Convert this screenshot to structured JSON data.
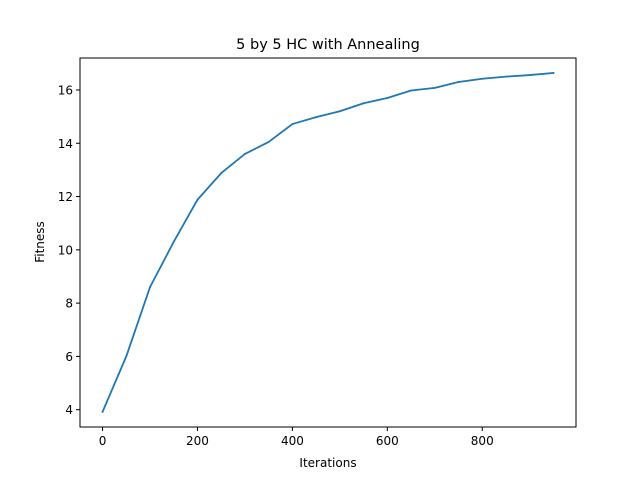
{
  "chart_data": {
    "type": "line",
    "title": "5 by 5 HC with Annealing",
    "xlabel": "Iterations",
    "ylabel": "Fitness",
    "xlim": [
      -47.5,
      997.5
    ],
    "ylim": [
      3.35,
      17.2
    ],
    "xticks": [
      0,
      200,
      400,
      600,
      800
    ],
    "yticks": [
      4,
      6,
      8,
      10,
      12,
      14,
      16
    ],
    "grid": false,
    "series": [
      {
        "color": "#1f77b4",
        "x": [
          0,
          50,
          100,
          150,
          200,
          250,
          300,
          350,
          400,
          450,
          500,
          550,
          600,
          650,
          700,
          750,
          800,
          850,
          900,
          950
        ],
        "y": [
          3.92,
          6.0,
          8.6,
          10.3,
          11.88,
          12.88,
          13.6,
          14.05,
          14.72,
          14.98,
          15.2,
          15.5,
          15.7,
          15.98,
          16.08,
          16.3,
          16.42,
          16.5,
          16.56,
          16.64
        ]
      }
    ]
  }
}
